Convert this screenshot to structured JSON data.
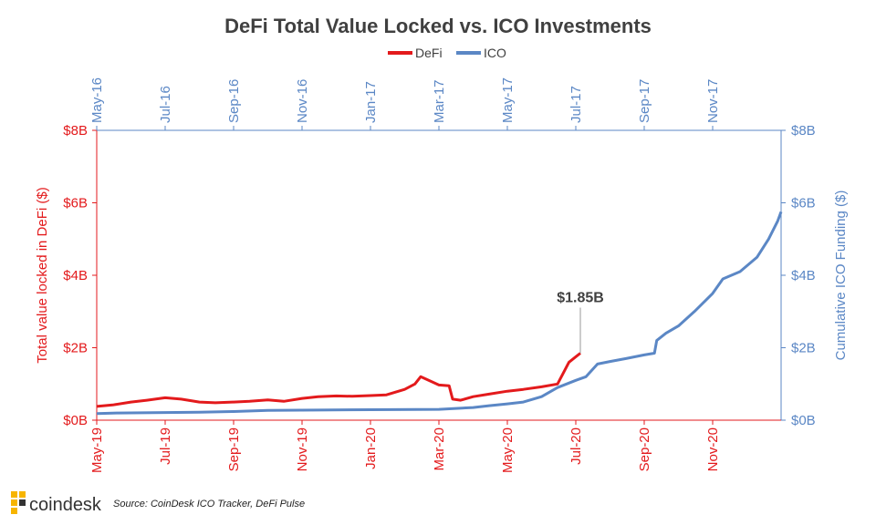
{
  "chart_data": {
    "type": "line",
    "title": "DeFi Total Value Locked vs. ICO Investments",
    "legend": {
      "placement": "top-center",
      "entries": [
        {
          "name": "DeFi",
          "color": "#e31a1c"
        },
        {
          "name": "ICO",
          "color": "#5b87c5"
        }
      ]
    },
    "y_left": {
      "label": "Total value locked in DeFi ($)",
      "min": 0,
      "max": 8,
      "unit": "billions USD",
      "ticks": [
        {
          "value": 0,
          "label": "$0B"
        },
        {
          "value": 2,
          "label": "$2B"
        },
        {
          "value": 4,
          "label": "$4B"
        },
        {
          "value": 6,
          "label": "$6B"
        },
        {
          "value": 8,
          "label": "$8B"
        }
      ]
    },
    "y_right": {
      "label": "Cumulative ICO Funding ($)",
      "min": 0,
      "max": 8,
      "unit": "billions USD",
      "ticks": [
        {
          "value": 0,
          "label": "$0B"
        },
        {
          "value": 2,
          "label": "$2B"
        },
        {
          "value": 4,
          "label": "$4B"
        },
        {
          "value": 6,
          "label": "$6B"
        },
        {
          "value": 8,
          "label": "$8B"
        }
      ]
    },
    "x_bottom": {
      "series": "DeFi",
      "range": [
        "2019-05",
        "2021-01"
      ],
      "ticks": [
        "May-19",
        "Jul-19",
        "Sep-19",
        "Nov-19",
        "Jan-20",
        "Mar-20",
        "May-20",
        "Jul-20",
        "Sep-20",
        "Nov-20"
      ]
    },
    "x_top": {
      "series": "ICO",
      "range": [
        "2016-05",
        "2018-01"
      ],
      "ticks": [
        "May-16",
        "Jul-16",
        "Sep-16",
        "Nov-16",
        "Jan-17",
        "Mar-17",
        "May-17",
        "Jul-17",
        "Sep-17",
        "Nov-17"
      ]
    },
    "grid": false,
    "series": [
      {
        "name": "DeFi",
        "color": "#e31a1c",
        "axis": "bottom-left",
        "points": [
          [
            "2019-05-01",
            0.38
          ],
          [
            "2019-05-15",
            0.42
          ],
          [
            "2019-06-01",
            0.5
          ],
          [
            "2019-06-15",
            0.55
          ],
          [
            "2019-07-01",
            0.62
          ],
          [
            "2019-07-15",
            0.58
          ],
          [
            "2019-08-01",
            0.5
          ],
          [
            "2019-08-15",
            0.48
          ],
          [
            "2019-09-01",
            0.5
          ],
          [
            "2019-09-15",
            0.52
          ],
          [
            "2019-10-01",
            0.56
          ],
          [
            "2019-10-15",
            0.52
          ],
          [
            "2019-11-01",
            0.6
          ],
          [
            "2019-11-15",
            0.65
          ],
          [
            "2019-12-01",
            0.67
          ],
          [
            "2019-12-15",
            0.66
          ],
          [
            "2020-01-01",
            0.68
          ],
          [
            "2020-01-15",
            0.7
          ],
          [
            "2020-02-01",
            0.85
          ],
          [
            "2020-02-10",
            1.0
          ],
          [
            "2020-02-15",
            1.2
          ],
          [
            "2020-02-22",
            1.1
          ],
          [
            "2020-03-01",
            0.97
          ],
          [
            "2020-03-10",
            0.95
          ],
          [
            "2020-03-13",
            0.58
          ],
          [
            "2020-03-20",
            0.55
          ],
          [
            "2020-04-01",
            0.65
          ],
          [
            "2020-04-15",
            0.72
          ],
          [
            "2020-05-01",
            0.8
          ],
          [
            "2020-05-15",
            0.85
          ],
          [
            "2020-06-01",
            0.92
          ],
          [
            "2020-06-15",
            1.0
          ],
          [
            "2020-06-20",
            1.3
          ],
          [
            "2020-06-25",
            1.6
          ],
          [
            "2020-07-01",
            1.75
          ],
          [
            "2020-07-05",
            1.85
          ]
        ]
      },
      {
        "name": "ICO",
        "color": "#5b87c5",
        "axis": "top-right",
        "points": [
          [
            "2016-05-01",
            0.18
          ],
          [
            "2016-05-20",
            0.2
          ],
          [
            "2016-08-01",
            0.22
          ],
          [
            "2016-09-01",
            0.24
          ],
          [
            "2016-10-01",
            0.27
          ],
          [
            "2016-11-15",
            0.28
          ],
          [
            "2017-01-01",
            0.29
          ],
          [
            "2017-03-01",
            0.3
          ],
          [
            "2017-04-01",
            0.35
          ],
          [
            "2017-04-15",
            0.4
          ],
          [
            "2017-05-01",
            0.45
          ],
          [
            "2017-05-15",
            0.5
          ],
          [
            "2017-06-01",
            0.65
          ],
          [
            "2017-06-15",
            0.9
          ],
          [
            "2017-07-01",
            1.1
          ],
          [
            "2017-07-10",
            1.2
          ],
          [
            "2017-07-20",
            1.55
          ],
          [
            "2017-08-01",
            1.62
          ],
          [
            "2017-08-15",
            1.7
          ],
          [
            "2017-09-01",
            1.8
          ],
          [
            "2017-09-10",
            1.85
          ],
          [
            "2017-09-12",
            2.2
          ],
          [
            "2017-09-20",
            2.4
          ],
          [
            "2017-10-01",
            2.6
          ],
          [
            "2017-10-15",
            3.0
          ],
          [
            "2017-11-01",
            3.5
          ],
          [
            "2017-11-10",
            3.9
          ],
          [
            "2017-11-25",
            4.1
          ],
          [
            "2017-12-10",
            4.5
          ],
          [
            "2017-12-20",
            5.0
          ],
          [
            "2017-12-28",
            5.5
          ],
          [
            "2018-01-01",
            5.75
          ]
        ]
      }
    ],
    "annotations": [
      {
        "text": "$1.85B",
        "series": "DeFi",
        "date": "2020-07-05",
        "value": 1.85
      }
    ],
    "source": "Source:  CoinDesk ICO Tracker,  DeFi Pulse",
    "logo_text": "coindesk"
  }
}
